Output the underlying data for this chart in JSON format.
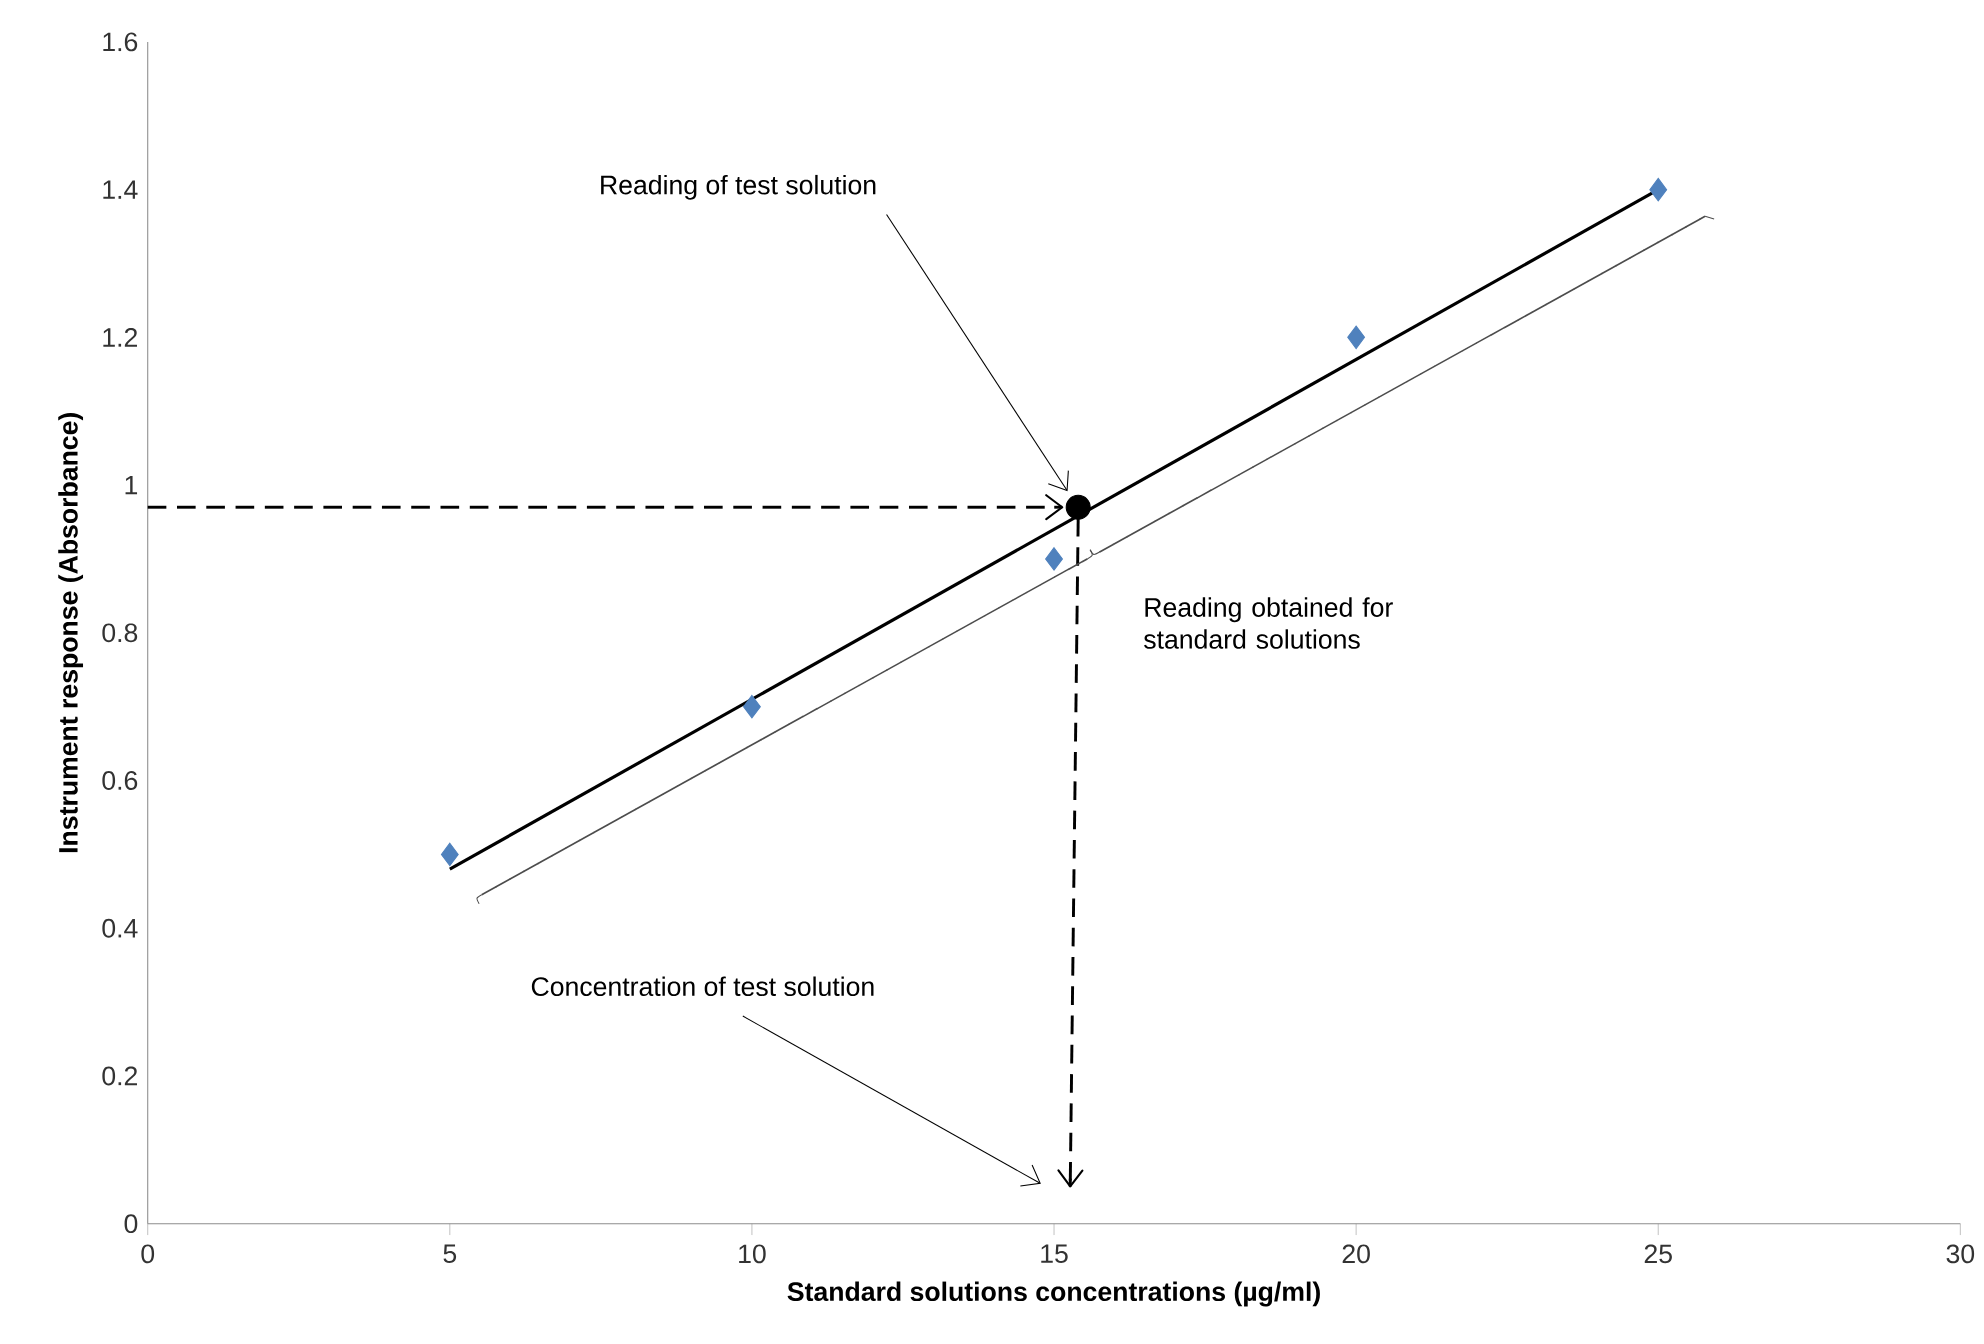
{
  "chart_data": {
    "type": "scatter",
    "xlabel": "Standard solutions concentrations (µg/ml)",
    "ylabel": "Instrument response (Absorbance)",
    "xlim": [
      0,
      30
    ],
    "xticks": [
      0,
      5,
      10,
      15,
      20,
      25,
      30
    ],
    "ylim": [
      0,
      1.6
    ],
    "yticks": [
      0,
      0.2,
      0.4,
      0.6,
      0.8,
      1,
      1.2,
      1.4,
      1.6
    ],
    "grid": false,
    "series": [
      {
        "color": "#4f81bd",
        "marker": "diamond",
        "x": [
          5,
          10,
          15,
          20,
          25
        ],
        "values": [
          0.5,
          0.7,
          0.9,
          1.2,
          1.4
        ]
      },
      {
        "type": "line",
        "color": "#000000",
        "marker": "none",
        "line_style": "solid",
        "x": [
          5,
          25
        ],
        "values": [
          0.48,
          1.4
        ]
      },
      {
        "color": "#000000",
        "marker": "circle",
        "x": [
          15.4
        ],
        "values": [
          0.97
        ]
      }
    ],
    "annotations": [
      "Reading of test solution",
      "Reading obtained for standard solutions",
      "Concentration of test solution"
    ]
  }
}
